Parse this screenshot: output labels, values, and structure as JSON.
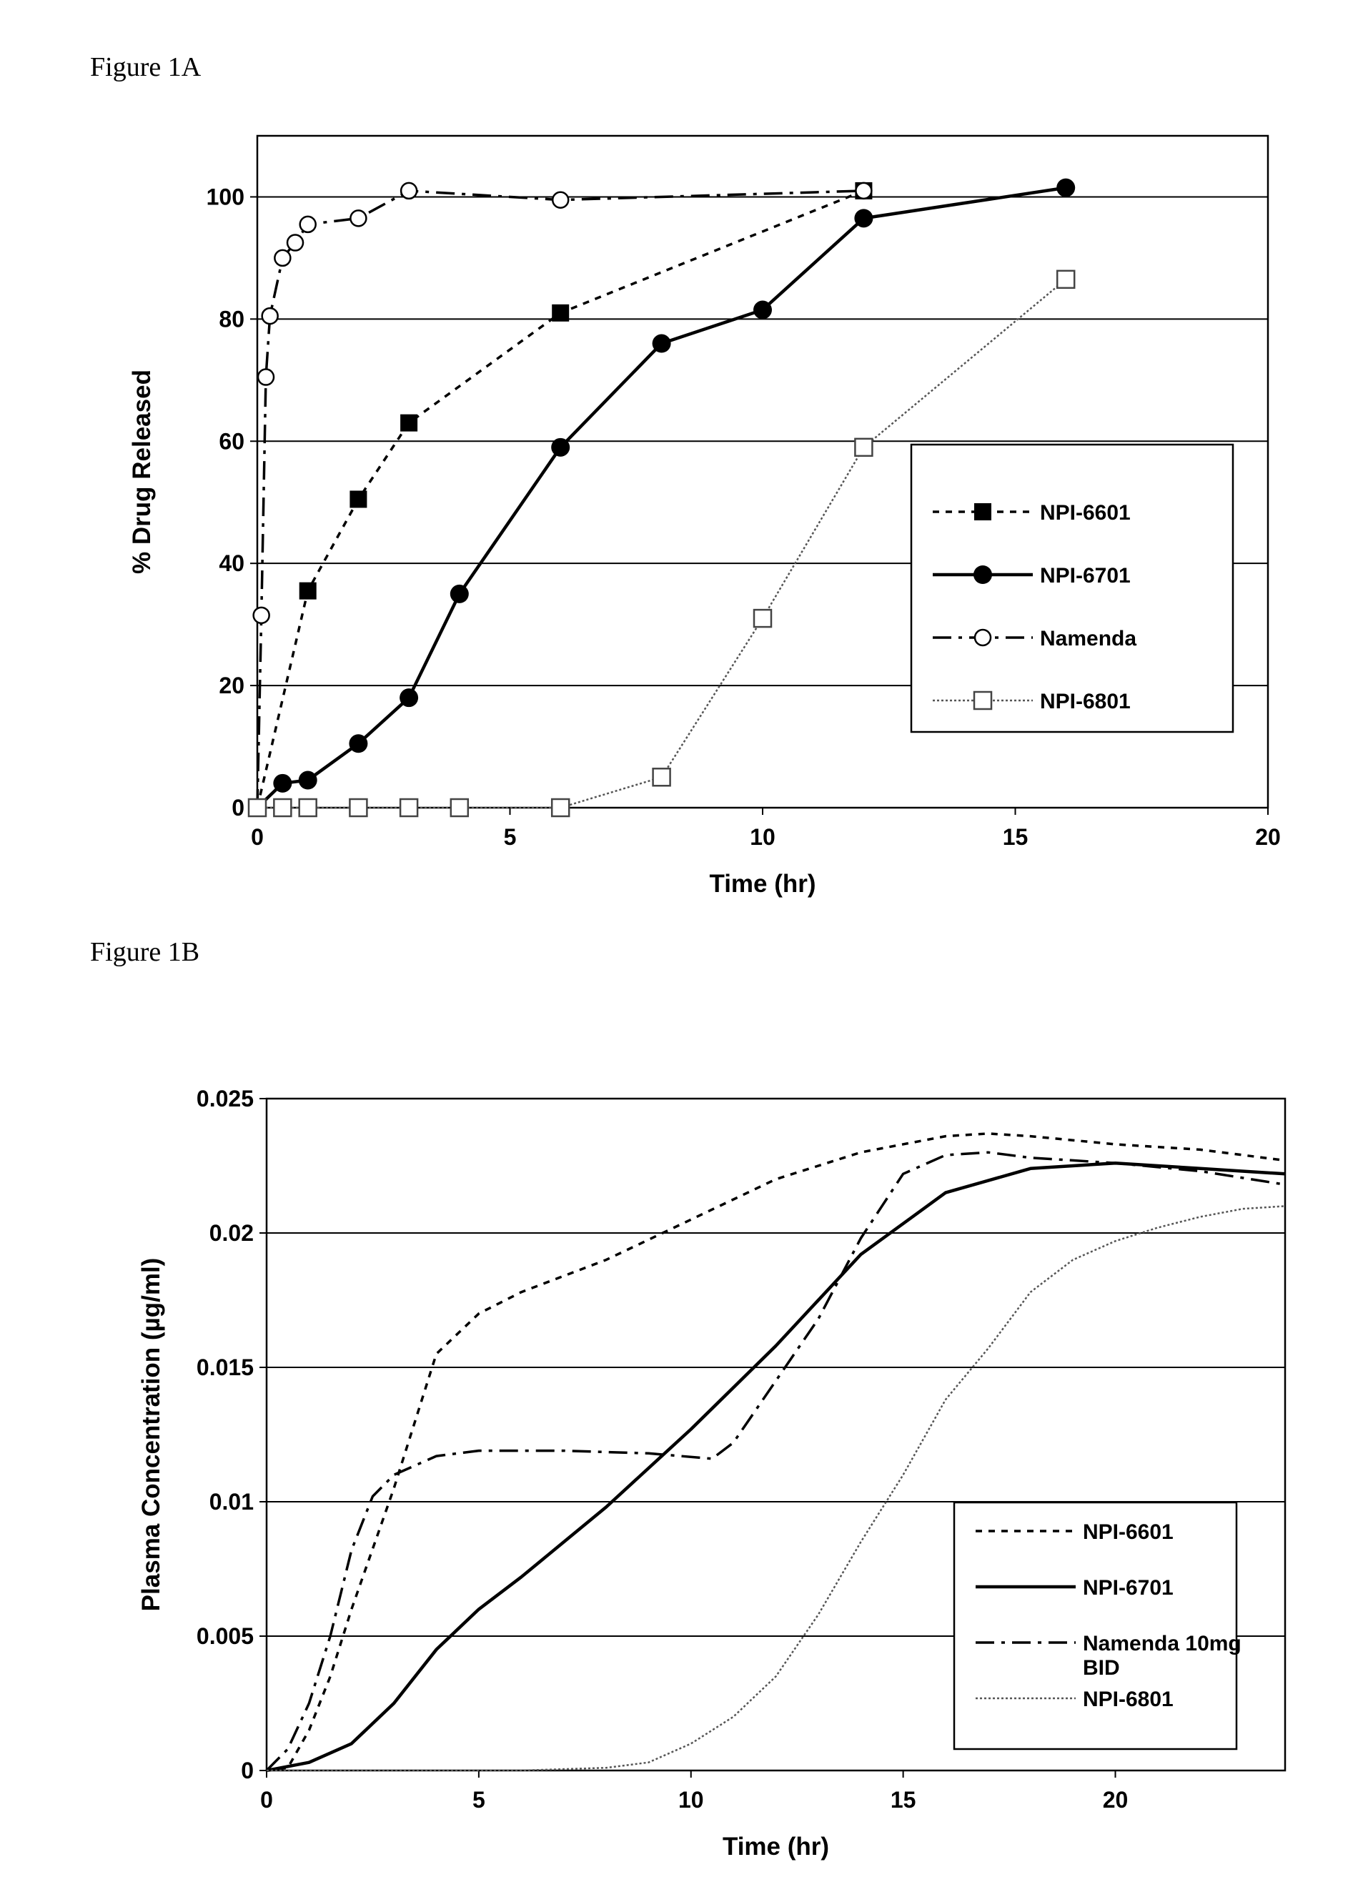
{
  "figure_labels": {
    "a": "Figure 1A",
    "b": "Figure 1B"
  },
  "chart_data": [
    {
      "type": "line",
      "xlabel": "Time (hr)",
      "ylabel": "% Drug Released",
      "xlim": [
        0,
        20
      ],
      "ylim": [
        0,
        110
      ],
      "x_ticks": [
        "0",
        "5",
        "10",
        "15",
        "20"
      ],
      "y_ticks": [
        "0",
        "20",
        "40",
        "60",
        "80",
        "100"
      ],
      "grid": "horizontal",
      "legend_position": "right",
      "series": [
        {
          "name": "NPI-6601",
          "marker": "filled-square",
          "line": "dotted",
          "points": [
            [
              0,
              0
            ],
            [
              1,
              35.5
            ],
            [
              2,
              50.5
            ],
            [
              3,
              63
            ],
            [
              6,
              81
            ],
            [
              12,
              101
            ]
          ]
        },
        {
          "name": "NPI-6701",
          "marker": "filled-circle",
          "line": "solid",
          "points": [
            [
              0,
              0
            ],
            [
              0.5,
              4
            ],
            [
              1,
              4.5
            ],
            [
              2,
              10.5
            ],
            [
              3,
              18
            ],
            [
              4,
              35
            ],
            [
              6,
              59
            ],
            [
              8,
              76
            ],
            [
              10,
              81.5
            ],
            [
              12,
              96.5
            ],
            [
              16,
              101.5
            ]
          ]
        },
        {
          "name": "Namenda",
          "marker": "open-circle",
          "line": "dashdot",
          "points": [
            [
              0,
              0
            ],
            [
              0.08,
              31.5
            ],
            [
              0.17,
              70.5
            ],
            [
              0.25,
              80.5
            ],
            [
              0.5,
              90
            ],
            [
              0.75,
              92.5
            ],
            [
              1,
              95.5
            ],
            [
              2,
              96.5
            ],
            [
              3,
              101
            ],
            [
              6,
              99.5
            ],
            [
              12,
              101
            ]
          ]
        },
        {
          "name": "NPI-6801",
          "marker": "open-square",
          "line": "fine-dotted",
          "points": [
            [
              0,
              0
            ],
            [
              0.5,
              0
            ],
            [
              1,
              0
            ],
            [
              2,
              0
            ],
            [
              3,
              0
            ],
            [
              4,
              0
            ],
            [
              6,
              0
            ],
            [
              8,
              5
            ],
            [
              10,
              31
            ],
            [
              12,
              59
            ],
            [
              16,
              86.5
            ]
          ]
        }
      ]
    },
    {
      "type": "line",
      "xlabel": "Time (hr)",
      "ylabel": "Plasma Concentration (µg/ml)",
      "xlim": [
        0,
        24
      ],
      "ylim": [
        0,
        0.025
      ],
      "x_ticks": [
        "0",
        "5",
        "10",
        "15",
        "20"
      ],
      "y_ticks": [
        "0",
        "0.005",
        "0.01",
        "0.015",
        "0.02",
        "0.025"
      ],
      "grid": "horizontal",
      "legend_position": "lower-right",
      "series": [
        {
          "name": "NPI-6601",
          "line": "dotted",
          "points": [
            [
              0,
              0
            ],
            [
              0.5,
              0.0001
            ],
            [
              1,
              0.0015
            ],
            [
              1.5,
              0.0035
            ],
            [
              2,
              0.006
            ],
            [
              3,
              0.0105
            ],
            [
              4,
              0.0155
            ],
            [
              5,
              0.017
            ],
            [
              6,
              0.0178
            ],
            [
              8,
              0.019
            ],
            [
              10,
              0.0205
            ],
            [
              12,
              0.022
            ],
            [
              14,
              0.023
            ],
            [
              16,
              0.0236
            ],
            [
              17,
              0.0237
            ],
            [
              18,
              0.0236
            ],
            [
              20,
              0.0233
            ],
            [
              22,
              0.0231
            ],
            [
              24,
              0.0227
            ]
          ]
        },
        {
          "name": "NPI-6701",
          "line": "solid",
          "points": [
            [
              0,
              0
            ],
            [
              1,
              0.0003
            ],
            [
              2,
              0.001
            ],
            [
              3,
              0.0025
            ],
            [
              4,
              0.0045
            ],
            [
              5,
              0.006
            ],
            [
              6,
              0.0072
            ],
            [
              8,
              0.0098
            ],
            [
              10,
              0.0127
            ],
            [
              12,
              0.0158
            ],
            [
              14,
              0.0192
            ],
            [
              16,
              0.0215
            ],
            [
              18,
              0.0224
            ],
            [
              20,
              0.0226
            ],
            [
              22,
              0.0224
            ],
            [
              24,
              0.0222
            ]
          ]
        },
        {
          "name": "Namenda 10mg BID",
          "line": "dashdot",
          "points": [
            [
              0,
              0
            ],
            [
              0.5,
              0.0008
            ],
            [
              1,
              0.0025
            ],
            [
              1.5,
              0.005
            ],
            [
              2,
              0.0082
            ],
            [
              2.5,
              0.0102
            ],
            [
              3,
              0.011
            ],
            [
              4,
              0.0117
            ],
            [
              5,
              0.0119
            ],
            [
              6,
              0.0119
            ],
            [
              7,
              0.0119
            ],
            [
              9,
              0.0118
            ],
            [
              10.5,
              0.0116
            ],
            [
              11,
              0.0122
            ],
            [
              12,
              0.0145
            ],
            [
              13,
              0.0168
            ],
            [
              14,
              0.0198
            ],
            [
              15,
              0.0222
            ],
            [
              16,
              0.0229
            ],
            [
              17,
              0.023
            ],
            [
              18,
              0.0228
            ],
            [
              20,
              0.0226
            ],
            [
              22,
              0.0223
            ],
            [
              24,
              0.0218
            ]
          ]
        },
        {
          "name": "NPI-6801",
          "line": "fine-dotted",
          "points": [
            [
              0,
              0
            ],
            [
              6,
              0
            ],
            [
              8,
              0.0001
            ],
            [
              9,
              0.0003
            ],
            [
              10,
              0.001
            ],
            [
              11,
              0.002
            ],
            [
              12,
              0.0035
            ],
            [
              13,
              0.0058
            ],
            [
              14,
              0.0085
            ],
            [
              15,
              0.011
            ],
            [
              16,
              0.0138
            ],
            [
              17,
              0.0157
            ],
            [
              18,
              0.0178
            ],
            [
              19,
              0.019
            ],
            [
              20,
              0.0197
            ],
            [
              21,
              0.0202
            ],
            [
              22,
              0.0206
            ],
            [
              23,
              0.0209
            ],
            [
              24,
              0.021
            ]
          ]
        }
      ]
    }
  ]
}
